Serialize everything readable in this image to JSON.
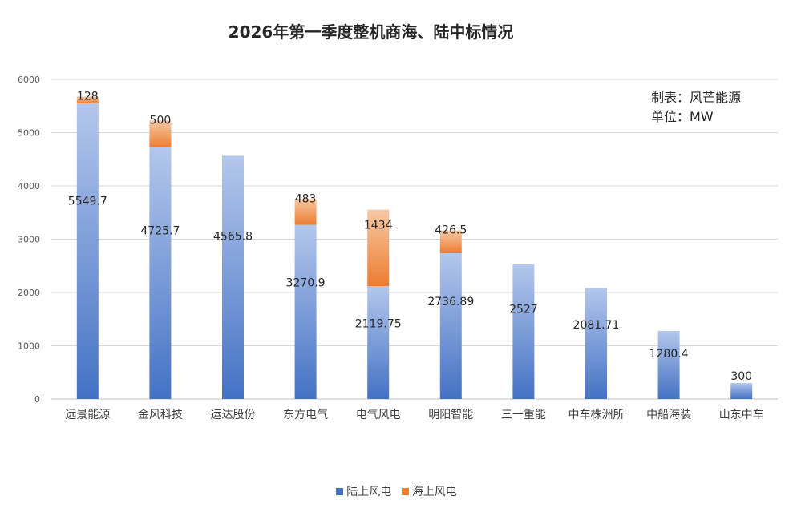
{
  "chart_data": {
    "type": "bar",
    "stacked": true,
    "title": "2026年第一季度整机商海、陆中标情况",
    "note_source": "制表：风芒能源",
    "note_unit": "单位：MW",
    "categories": [
      "远景能源",
      "金风科技",
      "运达股份",
      "东方电气",
      "电气风电",
      "明阳智能",
      "三一重能",
      "中车株洲所",
      "中船海装",
      "山东中车"
    ],
    "series": [
      {
        "name": "陆上风电",
        "values": [
          5549.7,
          4725.7,
          4565.8,
          3270.9,
          2119.75,
          2736.89,
          2527,
          2081.71,
          1280.4,
          300
        ],
        "color_top": "#b4c7ec",
        "color_bottom": "#4472c4"
      },
      {
        "name": "海上风电",
        "values": [
          128,
          500,
          null,
          483,
          1434,
          426.5,
          null,
          null,
          null,
          null
        ],
        "color_top": "#f6c8a4",
        "color_bottom": "#ed7d31"
      }
    ],
    "ylim": [
      0,
      6000
    ],
    "yticks": [
      "0",
      "1000",
      "2000",
      "3000",
      "4000",
      "5000",
      "6000"
    ],
    "grid": true,
    "legend_position": "bottom"
  }
}
